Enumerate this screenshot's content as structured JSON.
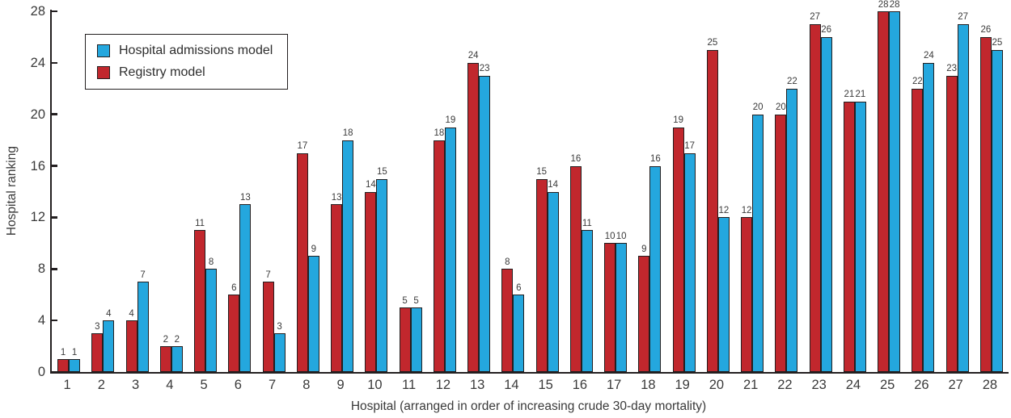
{
  "chart_data": {
    "type": "bar",
    "title": "",
    "xlabel": "Hospital (arranged in order of increasing crude 30-day mortality)",
    "ylabel": "Hospital ranking",
    "ylim": [
      0,
      28
    ],
    "yticks": [
      0,
      4,
      8,
      12,
      16,
      20,
      24,
      28
    ],
    "grid": "off",
    "legend_position": "top-left inside plot",
    "bar_value_labels": "shown above each bar",
    "categories": [
      "1",
      "2",
      "3",
      "4",
      "5",
      "6",
      "7",
      "8",
      "9",
      "10",
      "11",
      "12",
      "13",
      "14",
      "15",
      "16",
      "17",
      "18",
      "19",
      "20",
      "21",
      "22",
      "23",
      "24",
      "25",
      "26",
      "27",
      "28"
    ],
    "series": [
      {
        "name": "Registry model",
        "color": "#c1272d",
        "position_in_group": "left",
        "values": [
          1,
          3,
          4,
          2,
          11,
          6,
          7,
          17,
          13,
          14,
          5,
          18,
          24,
          8,
          15,
          16,
          10,
          9,
          19,
          25,
          12,
          20,
          27,
          21,
          28,
          22,
          23,
          26
        ]
      },
      {
        "name": "Hospital admissions model",
        "color": "#24a7de",
        "position_in_group": "right",
        "values": [
          1,
          4,
          7,
          2,
          8,
          13,
          3,
          9,
          18,
          15,
          5,
          19,
          23,
          6,
          14,
          11,
          10,
          16,
          17,
          12,
          20,
          22,
          26,
          21,
          28,
          24,
          27,
          25
        ]
      }
    ],
    "legend": [
      {
        "label": "Hospital admissions model",
        "color": "#24a7de"
      },
      {
        "label": "Registry model",
        "color": "#c1272d"
      }
    ],
    "colors": {
      "bar_outline": "#231f20",
      "axis": "#231f20",
      "text": "#3a3a3a"
    }
  }
}
